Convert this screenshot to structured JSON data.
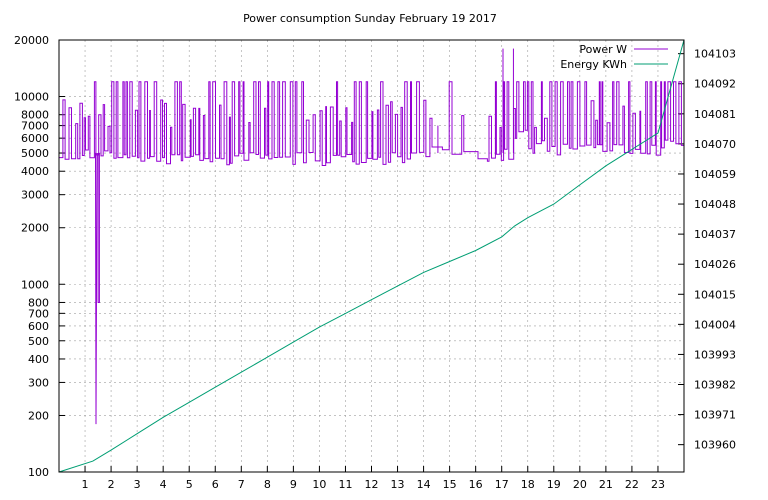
{
  "chart_data": {
    "type": "line",
    "title": "Power consumption Sunday February 19 2017",
    "xlabel": "",
    "ylabel": "",
    "y2label": "",
    "x_range": [
      0,
      24
    ],
    "x_ticks": [
      1,
      2,
      3,
      4,
      5,
      6,
      7,
      8,
      9,
      10,
      11,
      12,
      13,
      14,
      15,
      16,
      17,
      18,
      19,
      20,
      21,
      22,
      23
    ],
    "y_scale": "log",
    "y_range": [
      100,
      20000
    ],
    "y_ticks": [
      {
        "value": 100,
        "label": "100"
      },
      {
        "value": 200,
        "label": "200"
      },
      {
        "value": 300,
        "label": "300"
      },
      {
        "value": 400,
        "label": "400"
      },
      {
        "value": 500,
        "label": "500"
      },
      {
        "value": 600,
        "label": "600"
      },
      {
        "value": 700,
        "label": "700"
      },
      {
        "value": 800,
        "label": "800"
      },
      {
        "value": 1000,
        "label": "1000"
      },
      {
        "value": 2000,
        "label": "2000"
      },
      {
        "value": 3000,
        "label": "3000"
      },
      {
        "value": 4000,
        "label": "4000"
      },
      {
        "value": 5000,
        "label": "5000"
      },
      {
        "value": 6000,
        "label": "6000"
      },
      {
        "value": 7000,
        "label": "7000"
      },
      {
        "value": 8000,
        "label": "8000"
      },
      {
        "value": 10000,
        "label": "10000"
      },
      {
        "value": 20000,
        "label": "20000"
      }
    ],
    "y2_range": [
      103950,
      104108
    ],
    "y2_ticks": [
      103960,
      103971,
      103982,
      103993,
      104004,
      104015,
      104026,
      104037,
      104048,
      104059,
      104070,
      104081,
      104092,
      104103
    ],
    "grid": true,
    "legend_position": "top-right",
    "series": [
      {
        "name": "Power W",
        "axis": "y",
        "color": "#9400d3",
        "baseline": 5000,
        "peak": 12000,
        "points": [
          [
            0,
            5000
          ],
          [
            0.3,
            4900
          ],
          [
            0.6,
            5000
          ],
          [
            1.0,
            5000
          ],
          [
            1.15,
            5100
          ],
          [
            1.35,
            5000
          ],
          [
            1.42,
            180
          ],
          [
            1.46,
            5000
          ],
          [
            1.5,
            800
          ],
          [
            1.55,
            800
          ],
          [
            1.6,
            5000
          ],
          [
            2.0,
            4900
          ],
          [
            3.0,
            4800
          ],
          [
            4.0,
            4800
          ],
          [
            5.0,
            4900
          ],
          [
            6.0,
            4800
          ],
          [
            7.0,
            4800
          ],
          [
            8.0,
            4800
          ],
          [
            9.0,
            4800
          ],
          [
            10.0,
            4700
          ],
          [
            11.0,
            4800
          ],
          [
            12.0,
            4800
          ],
          [
            13.0,
            4900
          ],
          [
            13.6,
            5000
          ],
          [
            14.0,
            5200
          ],
          [
            14.5,
            5200
          ],
          [
            15.0,
            5100
          ],
          [
            15.2,
            5000
          ],
          [
            16.0,
            5000
          ],
          [
            17.0,
            5100
          ],
          [
            17.5,
            6500
          ],
          [
            18.0,
            5500
          ],
          [
            18.5,
            5600
          ],
          [
            19.0,
            5400
          ],
          [
            20.0,
            5600
          ],
          [
            20.5,
            5400
          ],
          [
            21.0,
            5500
          ],
          [
            22.0,
            5400
          ],
          [
            23.0,
            5600
          ],
          [
            23.5,
            5800
          ],
          [
            24.0,
            6000
          ]
        ]
      },
      {
        "name": "Energy KWh",
        "axis": "y2",
        "color": "#009e73",
        "points": [
          [
            0,
            103950
          ],
          [
            1.3,
            103954
          ],
          [
            2.0,
            103958
          ],
          [
            3.0,
            103964
          ],
          [
            4.0,
            103970
          ],
          [
            5.0,
            103975.5
          ],
          [
            6.0,
            103981
          ],
          [
            7.0,
            103986.5
          ],
          [
            8.0,
            103992
          ],
          [
            9.0,
            103997.5
          ],
          [
            10.0,
            104003
          ],
          [
            11.0,
            104008
          ],
          [
            12.0,
            104013
          ],
          [
            13.0,
            104018
          ],
          [
            14.0,
            104023
          ],
          [
            15.0,
            104027
          ],
          [
            16.0,
            104031
          ],
          [
            17.0,
            104036
          ],
          [
            17.5,
            104040
          ],
          [
            18.0,
            104043
          ],
          [
            19.0,
            104048
          ],
          [
            20.0,
            104055
          ],
          [
            21.0,
            104062
          ],
          [
            22.0,
            104068
          ],
          [
            23.0,
            104074
          ],
          [
            24.0,
            104108
          ]
        ]
      }
    ],
    "power_spikes": [
      {
        "x": 17.05,
        "value": 18000
      },
      {
        "x": 17.45,
        "value": 18000
      },
      {
        "x": 14.55,
        "value": 7000
      }
    ]
  }
}
